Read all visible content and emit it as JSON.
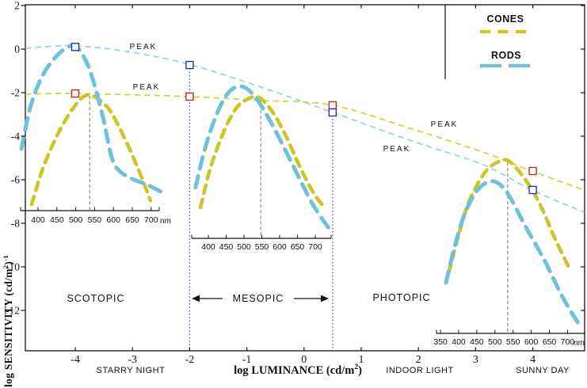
{
  "legend": {
    "items": [
      {
        "label": "CONES",
        "color": "#ccc726",
        "style": "short-dash"
      },
      {
        "label": "RODS",
        "color": "#6fc0da",
        "style": "long-dash"
      }
    ]
  },
  "y_axis": {
    "title": {
      "prefix": "log SENSITIVITY (cd/m",
      "sup": "2",
      "close": ")",
      "sup2": "-1"
    },
    "tick_labels": [
      "2",
      "0",
      "-2",
      "-4",
      "-6",
      "-8",
      "-10",
      "-12"
    ],
    "tick_values": [
      2,
      0,
      -2,
      -4,
      -6,
      -8,
      -10,
      -12
    ]
  },
  "x_axis": {
    "title": {
      "prefix": "log LUMINANCE (cd/m",
      "sup": "2",
      "close": ")"
    },
    "tick_labels": [
      "-4",
      "-3",
      "-2",
      "-1",
      "0",
      "1",
      "2",
      "3",
      "4"
    ],
    "tick_values": [
      -4,
      -3,
      -2,
      -1,
      0,
      1,
      2,
      3,
      4
    ]
  },
  "captions": [
    {
      "text": "STARRY NIGHT"
    },
    {
      "text": "INDOOR LIGHT"
    },
    {
      "text": "SUNNY DAY"
    }
  ],
  "regions": {
    "scotopic": "SCOTOPIC",
    "mesopic": "MESOPIC",
    "photopic": "PHOTOPIC"
  },
  "peak_annotations": [
    {
      "text": "PEAK"
    },
    {
      "text": "PEAK"
    },
    {
      "text": "PEAK"
    },
    {
      "text": "PEAK"
    }
  ],
  "chart_data": {
    "type": "line",
    "title": "",
    "xlabel": "log LUMINANCE (cd/m^2)",
    "ylabel": "log SENSITIVITY (cd/m^2)^-1",
    "xlim": [
      -4.9,
      4.95
    ],
    "ylim": [
      -13.9,
      2.05
    ],
    "grid": false,
    "legend_position": "top-right",
    "envelopes": {
      "rods": [
        [
          -4.87,
          0.04
        ],
        [
          -4.04,
          0.15
        ],
        [
          -3.1,
          -0.11
        ],
        [
          -2.02,
          -0.69
        ],
        [
          -0.75,
          -1.75
        ],
        [
          0.5,
          -2.91
        ],
        [
          1.89,
          -4.22
        ],
        [
          3.13,
          -5.31
        ],
        [
          3.98,
          -6.47
        ],
        [
          4.9,
          -7.49
        ]
      ],
      "cones": [
        [
          -4.87,
          -2.07
        ],
        [
          -4.0,
          -2.04
        ],
        [
          -2.82,
          -2.11
        ],
        [
          -2.02,
          -2.18
        ],
        [
          -0.75,
          -2.36
        ],
        [
          0.5,
          -2.58
        ],
        [
          1.89,
          -3.67
        ],
        [
          3.13,
          -4.73
        ],
        [
          3.98,
          -5.6
        ],
        [
          4.9,
          -6.47
        ]
      ]
    },
    "markers": {
      "rods": [
        [
          -4.0,
          0.1
        ],
        [
          -2.0,
          -0.73
        ],
        [
          0.5,
          -2.91
        ],
        [
          4.0,
          -6.47
        ]
      ],
      "cones": [
        [
          -4.0,
          -2.04
        ],
        [
          -2.0,
          -2.18
        ],
        [
          0.5,
          -2.58
        ],
        [
          4.0,
          -5.6
        ]
      ]
    },
    "boundaries": [
      {
        "logL": -2.0,
        "top_logS": -0.73
      },
      {
        "logL": 0.5,
        "top_logS": -2.58
      }
    ],
    "insets": [
      {
        "name": "scotopic",
        "tick_values": [
          400,
          450,
          500,
          550,
          600,
          650,
          700
        ],
        "tick_labels": [
          "400",
          "450",
          "500",
          "550",
          "600",
          "650",
          "700"
        ],
        "unit": "nm",
        "peak_line_nm": 537,
        "peak_line_top_logS": -2.15,
        "rod_curve": [
          [
            356,
            -4.58
          ],
          [
            383,
            -2.47
          ],
          [
            425,
            -0.84
          ],
          [
            488,
            0.15
          ],
          [
            530,
            -0.65
          ],
          [
            568,
            -2.84
          ],
          [
            595,
            -4.95
          ],
          [
            614,
            -5.56
          ],
          [
            646,
            -5.93
          ],
          [
            688,
            -6.22
          ],
          [
            726,
            -6.55
          ]
        ],
        "cone_curve": [
          [
            383,
            -7.13
          ],
          [
            415,
            -5.38
          ],
          [
            457,
            -3.75
          ],
          [
            499,
            -2.58
          ],
          [
            534,
            -2.11
          ],
          [
            583,
            -2.65
          ],
          [
            625,
            -3.93
          ],
          [
            667,
            -5.56
          ],
          [
            698,
            -6.95
          ]
        ]
      },
      {
        "name": "mesopic",
        "tick_values": [
          400,
          450,
          500,
          550,
          600,
          650,
          700
        ],
        "tick_labels": [
          "400",
          "450",
          "500",
          "550",
          "600",
          "650",
          "700"
        ],
        "unit": "",
        "peak_line_nm": 547,
        "peak_line_top_logS": -2.3,
        "rod_curve": [
          [
            364,
            -6.36
          ],
          [
            389,
            -4.65
          ],
          [
            420,
            -3.13
          ],
          [
            453,
            -2.07
          ],
          [
            489,
            -1.71
          ],
          [
            527,
            -2.11
          ],
          [
            576,
            -3.38
          ],
          [
            633,
            -5.2
          ],
          [
            693,
            -7.13
          ],
          [
            744,
            -8.36
          ]
        ],
        "cone_curve": [
          [
            378,
            -7.27
          ],
          [
            404,
            -5.56
          ],
          [
            438,
            -4.0
          ],
          [
            476,
            -2.76
          ],
          [
            511,
            -2.29
          ],
          [
            542,
            -2.22
          ],
          [
            578,
            -2.84
          ],
          [
            616,
            -3.93
          ],
          [
            656,
            -5.38
          ],
          [
            693,
            -6.55
          ],
          [
            722,
            -7.2
          ]
        ]
      },
      {
        "name": "photopic",
        "tick_values": [
          350,
          400,
          450,
          500,
          550,
          600,
          650,
          700
        ],
        "tick_labels": [
          "350",
          "400",
          "450",
          "500",
          "550",
          "600",
          "650",
          "700"
        ],
        "unit": "nm",
        "peak_line_nm": 535,
        "peak_line_top_logS": -5.2,
        "rod_curve": [
          [
            365,
            -10.73
          ],
          [
            387,
            -9.2
          ],
          [
            415,
            -7.64
          ],
          [
            452,
            -6.47
          ],
          [
            494,
            -6.07
          ],
          [
            533,
            -6.58
          ],
          [
            583,
            -8.11
          ],
          [
            638,
            -9.75
          ],
          [
            686,
            -11.38
          ],
          [
            736,
            -12.76
          ]
        ],
        "cone_curve": [
          [
            372,
            -10.29
          ],
          [
            398,
            -8.65
          ],
          [
            428,
            -7.02
          ],
          [
            472,
            -5.67
          ],
          [
            511,
            -5.16
          ],
          [
            540,
            -5.16
          ],
          [
            581,
            -5.93
          ],
          [
            621,
            -7.02
          ],
          [
            664,
            -8.65
          ],
          [
            703,
            -10.0
          ]
        ]
      }
    ],
    "colors": {
      "rod_curve": "#6fc0da",
      "cone_curve": "#cbc526",
      "rod_envelope": "#92d2e8",
      "cone_envelope": "#d6d02f",
      "rod_marker": "#1f35bd",
      "cone_marker": "#cd2418",
      "boundary_line": "#3b3b94",
      "peak_wavelength_line": "#8b7a55",
      "y_title": "#19196e"
    }
  }
}
